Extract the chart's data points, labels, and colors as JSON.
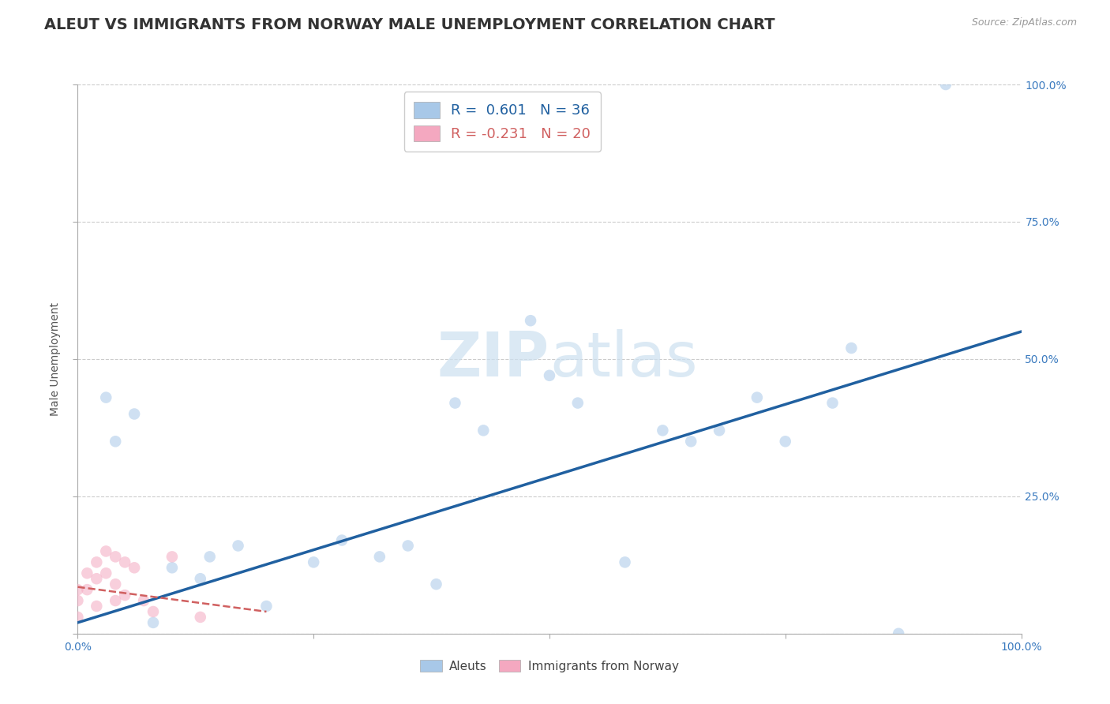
{
  "title": "ALEUT VS IMMIGRANTS FROM NORWAY MALE UNEMPLOYMENT CORRELATION CHART",
  "source": "Source: ZipAtlas.com",
  "ylabel": "Male Unemployment",
  "watermark": "ZIPatlas",
  "xlim": [
    0.0,
    1.0
  ],
  "ylim": [
    0.0,
    1.0
  ],
  "xticks": [
    0.0,
    0.25,
    0.5,
    0.75,
    1.0
  ],
  "yticks": [
    0.0,
    0.25,
    0.5,
    0.75,
    1.0
  ],
  "xtick_labels": [
    "0.0%",
    "",
    "",
    "",
    "100.0%"
  ],
  "ytick_labels_right": [
    "",
    "25.0%",
    "50.0%",
    "75.0%",
    "100.0%"
  ],
  "grid_color": "#cccccc",
  "background_color": "#ffffff",
  "aleuts_color": "#a8c8e8",
  "norway_color": "#f4a8c0",
  "trendline_aleuts_color": "#2060a0",
  "trendline_norway_color": "#d06060",
  "aleuts_x": [
    0.03,
    0.06,
    0.08,
    0.04,
    0.1,
    0.13,
    0.14,
    0.17,
    0.2,
    0.25,
    0.28,
    0.32,
    0.35,
    0.38,
    0.4,
    0.43,
    0.48,
    0.5,
    0.53,
    0.58,
    0.62,
    0.65,
    0.68,
    0.72,
    0.75,
    0.8,
    0.82,
    0.87,
    0.92
  ],
  "aleuts_y": [
    0.43,
    0.4,
    0.02,
    0.35,
    0.12,
    0.1,
    0.14,
    0.16,
    0.05,
    0.13,
    0.17,
    0.14,
    0.16,
    0.09,
    0.42,
    0.37,
    0.57,
    0.47,
    0.42,
    0.13,
    0.37,
    0.35,
    0.37,
    0.43,
    0.35,
    0.42,
    0.52,
    0.0,
    1.0
  ],
  "norway_x": [
    0.0,
    0.0,
    0.0,
    0.01,
    0.01,
    0.02,
    0.02,
    0.02,
    0.03,
    0.03,
    0.04,
    0.04,
    0.04,
    0.05,
    0.05,
    0.06,
    0.07,
    0.08,
    0.1,
    0.13
  ],
  "norway_y": [
    0.08,
    0.06,
    0.03,
    0.11,
    0.08,
    0.13,
    0.1,
    0.05,
    0.15,
    0.11,
    0.14,
    0.09,
    0.06,
    0.13,
    0.07,
    0.12,
    0.06,
    0.04,
    0.14,
    0.03
  ],
  "aleut_trendline_x0": 0.0,
  "aleut_trendline_y0": 0.02,
  "aleut_trendline_x1": 1.0,
  "aleut_trendline_y1": 0.55,
  "norway_trendline_x0": 0.0,
  "norway_trendline_y0": 0.085,
  "norway_trendline_x1": 0.2,
  "norway_trendline_y1": 0.04,
  "marker_size": 110,
  "alpha_scatter": 0.55,
  "title_fontsize": 14,
  "axis_label_fontsize": 10,
  "tick_fontsize": 10,
  "legend_fontsize": 13
}
